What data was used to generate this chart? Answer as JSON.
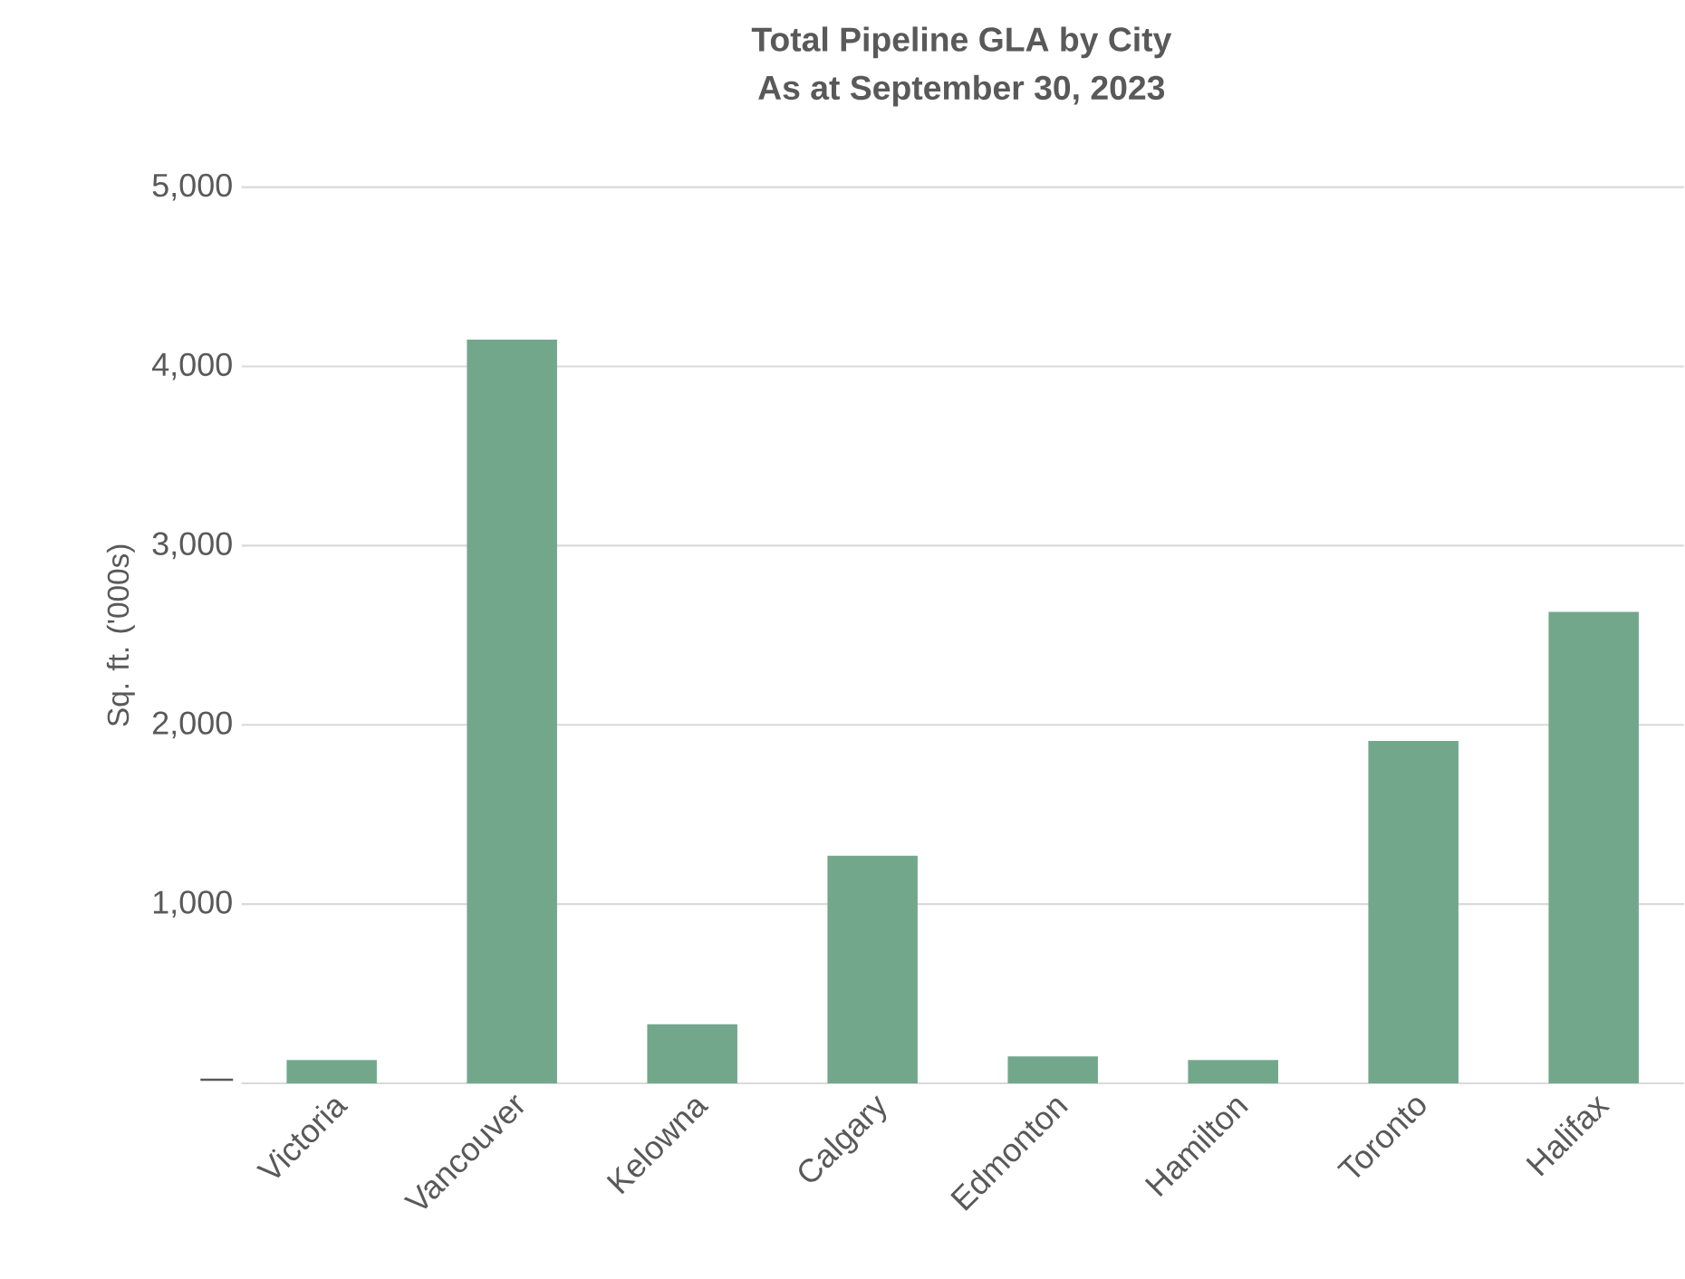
{
  "chart_data": {
    "type": "bar",
    "title": "Total Pipeline GLA by City\nAs at September 30, 2023",
    "ylabel": "Sq. ft. ('000s)",
    "categories": [
      "Victoria",
      "Vancouver",
      "Kelowna",
      "Calgary",
      "Edmonton",
      "Hamilton",
      "Toronto",
      "Halifax"
    ],
    "values": [
      130,
      4150,
      330,
      1270,
      150,
      130,
      1910,
      2630
    ],
    "color": "#72a78b",
    "ylim": [
      0,
      5000
    ],
    "yticks": [
      {
        "value": 0,
        "label": "—"
      },
      {
        "value": 1000,
        "label": "1,000"
      },
      {
        "value": 2000,
        "label": "2,000"
      },
      {
        "value": 3000,
        "label": "3,000"
      },
      {
        "value": 4000,
        "label": "4,000"
      },
      {
        "value": 5000,
        "label": "5,000"
      }
    ],
    "grid": "y"
  }
}
